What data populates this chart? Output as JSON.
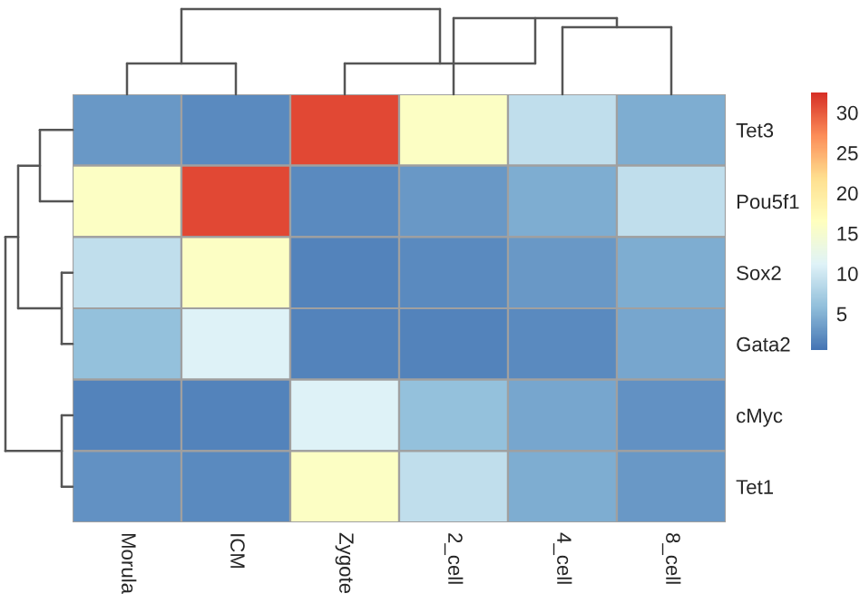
{
  "chart_data": {
    "type": "heatmap",
    "categories": [
      "Morula",
      "ICM",
      "Zygote",
      "2_cell",
      "4_cell",
      "8_cell"
    ],
    "y_categories": [
      "Tet3",
      "Pou5f1",
      "Sox2",
      "Gata2",
      "cMyc",
      "Tet1"
    ],
    "cells": [
      [
        3,
        2,
        31,
        16,
        9,
        4.5
      ],
      [
        16,
        31,
        2,
        3,
        4.5,
        9
      ],
      [
        9,
        16,
        1.5,
        2,
        3,
        4.5
      ],
      [
        6,
        11,
        1.5,
        1.5,
        2,
        4
      ],
      [
        1.5,
        1.5,
        11,
        6,
        4,
        2.5
      ],
      [
        2.5,
        2,
        16,
        9,
        4.5,
        3
      ]
    ],
    "clim": [
      0.5,
      32.5
    ],
    "cticks": [
      5,
      10,
      15,
      20,
      25,
      30
    ]
  }
}
